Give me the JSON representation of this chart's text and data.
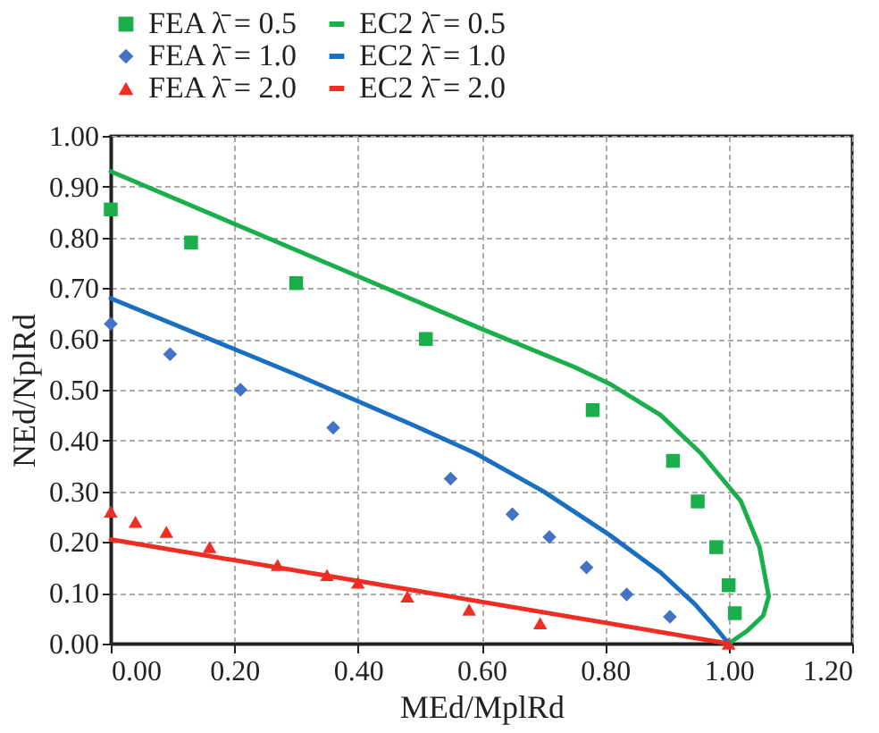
{
  "chart_data": {
    "type": "scatter",
    "xlabel": "MEd/MplRd",
    "ylabel": "NEd/NplRd",
    "xlim": [
      0,
      1.2
    ],
    "xticks": [
      {
        "value": 0,
        "label": "0.00"
      },
      {
        "value": 0.2,
        "label": "0.20"
      },
      {
        "value": 0.4,
        "label": "0.40"
      },
      {
        "value": 0.6,
        "label": "0.60"
      },
      {
        "value": 0.8,
        "label": "0.80"
      },
      {
        "value": 1.0,
        "label": "1.00"
      },
      {
        "value": 1.2,
        "label": "1.20"
      }
    ],
    "ylim": [
      0,
      1.0
    ],
    "yticks": [
      {
        "value": 0,
        "label": "0.00"
      },
      {
        "value": 0.1,
        "label": "0.10"
      },
      {
        "value": 0.2,
        "label": "0.20"
      },
      {
        "value": 0.3,
        "label": "0.30"
      },
      {
        "value": 0.4,
        "label": "0.40"
      },
      {
        "value": 0.5,
        "label": "0.50"
      },
      {
        "value": 0.6,
        "label": "0.60"
      },
      {
        "value": 0.7,
        "label": "0.70"
      },
      {
        "value": 0.8,
        "label": "0.80"
      },
      {
        "value": 0.9,
        "label": "0.90"
      },
      {
        "value": 1.0,
        "label": "1.00"
      }
    ],
    "grid": true,
    "legend": "top",
    "series": [
      {
        "name": "FEA  λ̄ = 0.5",
        "marker": "square",
        "color": "#1aaf4b",
        "x": [
          0.0,
          0.13,
          0.3,
          0.51,
          0.78,
          0.91,
          0.95,
          0.98,
          1.0,
          1.01
        ],
        "values": [
          0.855,
          0.79,
          0.71,
          0.6,
          0.46,
          0.36,
          0.28,
          0.19,
          0.115,
          0.06
        ]
      },
      {
        "name": "FEA  λ̄ = 1.0",
        "marker": "diamond",
        "color": "#4472c4",
        "x": [
          0.0,
          0.096,
          0.21,
          0.36,
          0.55,
          0.65,
          0.71,
          0.77,
          0.835,
          0.905
        ],
        "values": [
          0.63,
          0.57,
          0.5,
          0.425,
          0.325,
          0.255,
          0.21,
          0.15,
          0.097,
          0.053
        ]
      },
      {
        "name": "FEA  λ̄ = 2.0",
        "marker": "triangle",
        "color": "#ee2d24",
        "x": [
          0.0,
          0.04,
          0.09,
          0.16,
          0.27,
          0.35,
          0.4,
          0.48,
          0.58,
          0.695,
          1.0
        ],
        "values": [
          0.26,
          0.24,
          0.22,
          0.19,
          0.155,
          0.135,
          0.12,
          0.093,
          0.067,
          0.04,
          0.0
        ]
      },
      {
        "name": "EC2  λ̄ = 0.5",
        "type": "line",
        "color": "#1aaf4b",
        "x": [
          0.0,
          0.3,
          0.6,
          0.75,
          0.81,
          0.89,
          0.955,
          1.02,
          1.05,
          1.065,
          1.056,
          1.03,
          1.0
        ],
        "values": [
          0.93,
          0.775,
          0.62,
          0.545,
          0.51,
          0.45,
          0.375,
          0.28,
          0.19,
          0.093,
          0.055,
          0.025,
          0.0
        ]
      },
      {
        "name": "EC2  λ̄ = 1.0",
        "type": "line",
        "color": "#1a6fc0",
        "x": [
          0.0,
          0.3,
          0.49,
          0.59,
          0.7,
          0.806,
          0.89,
          0.945,
          0.98,
          1.0
        ],
        "values": [
          0.68,
          0.53,
          0.43,
          0.375,
          0.3,
          0.215,
          0.14,
          0.078,
          0.03,
          0.0
        ]
      },
      {
        "name": "EC2  λ̄ = 2.0",
        "type": "line",
        "color": "#ee2d24",
        "x": [
          0.0,
          0.5,
          1.0
        ],
        "values": [
          0.205,
          0.103,
          0.0
        ]
      }
    ]
  }
}
